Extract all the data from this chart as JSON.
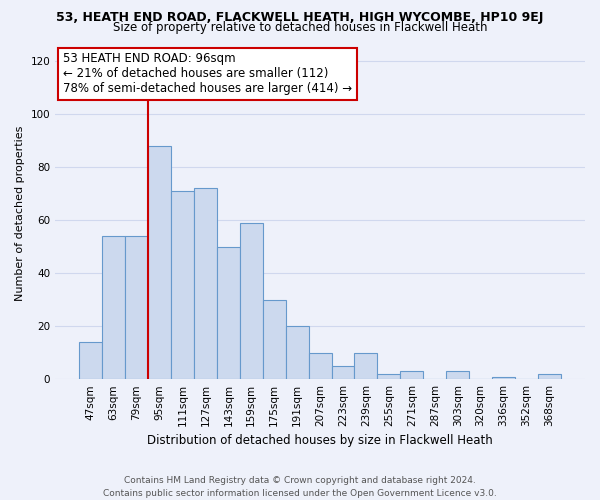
{
  "title": "53, HEATH END ROAD, FLACKWELL HEATH, HIGH WYCOMBE, HP10 9EJ",
  "subtitle": "Size of property relative to detached houses in Flackwell Heath",
  "xlabel": "Distribution of detached houses by size in Flackwell Heath",
  "ylabel": "Number of detached properties",
  "bar_labels": [
    "47sqm",
    "63sqm",
    "79sqm",
    "95sqm",
    "111sqm",
    "127sqm",
    "143sqm",
    "159sqm",
    "175sqm",
    "191sqm",
    "207sqm",
    "223sqm",
    "239sqm",
    "255sqm",
    "271sqm",
    "287sqm",
    "303sqm",
    "320sqm",
    "336sqm",
    "352sqm",
    "368sqm"
  ],
  "bar_values": [
    14,
    54,
    54,
    88,
    71,
    72,
    50,
    59,
    30,
    20,
    10,
    5,
    10,
    2,
    3,
    0,
    3,
    0,
    1,
    0,
    2
  ],
  "bar_color": "#ccd9ee",
  "bar_edge_color": "#6699cc",
  "ylim": [
    0,
    125
  ],
  "yticks": [
    0,
    20,
    40,
    60,
    80,
    100,
    120
  ],
  "vline_color": "#cc0000",
  "annotation_title": "53 HEATH END ROAD: 96sqm",
  "annotation_line1": "← 21% of detached houses are smaller (112)",
  "annotation_line2": "78% of semi-detached houses are larger (414) →",
  "annotation_box_color": "#ffffff",
  "annotation_box_edge": "#cc0000",
  "footer_line1": "Contains HM Land Registry data © Crown copyright and database right 2024.",
  "footer_line2": "Contains public sector information licensed under the Open Government Licence v3.0.",
  "bg_color": "#eef1fa",
  "grid_color": "#d0d8ee",
  "title_fontsize": 9,
  "subtitle_fontsize": 8.5,
  "ylabel_fontsize": 8,
  "xlabel_fontsize": 8.5,
  "tick_fontsize": 7.5,
  "annot_fontsize": 8.5,
  "footer_fontsize": 6.5
}
